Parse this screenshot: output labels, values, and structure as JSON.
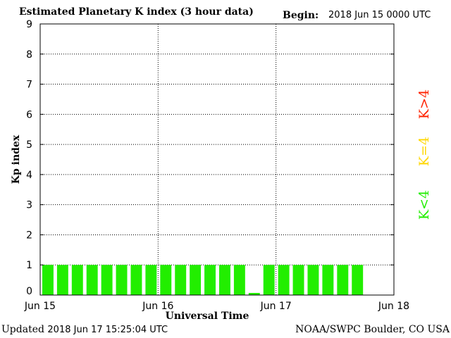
{
  "header": {
    "title": "Estimated Planetary K index (3 hour data)",
    "begin_label": "Begin:",
    "begin_value": "2018 Jun 15 0000 UTC"
  },
  "footer": {
    "updated_label": "Updated",
    "updated_value": "2018 Jun 17 15:25:04 UTC",
    "credit": "NOAA/SWPC Boulder, CO USA"
  },
  "legend": {
    "high": {
      "label": "K>4",
      "color": "#ff2200"
    },
    "equal": {
      "label": "K=4",
      "color": "#ffd700"
    },
    "low": {
      "label": "K<4",
      "color": "#22ee00"
    }
  },
  "chart_data": {
    "type": "bar",
    "title": "Estimated Planetary K index (3 hour data)",
    "xlabel": "Universal Time",
    "ylabel": "Kp index",
    "ylim": [
      0,
      9
    ],
    "yticks": [
      "0",
      "1",
      "2",
      "3",
      "4",
      "5",
      "6",
      "7",
      "8",
      "9"
    ],
    "xticks": [
      "Jun 15",
      "Jun 16",
      "Jun 17",
      "Jun 18"
    ],
    "total_periods": 24,
    "grid": true,
    "bar_color": "#22ee00",
    "values": [
      1,
      1,
      1,
      1,
      1,
      1,
      1,
      1,
      1,
      1,
      1,
      1,
      1,
      1,
      0,
      1,
      1,
      1,
      1,
      1,
      1,
      1
    ]
  }
}
